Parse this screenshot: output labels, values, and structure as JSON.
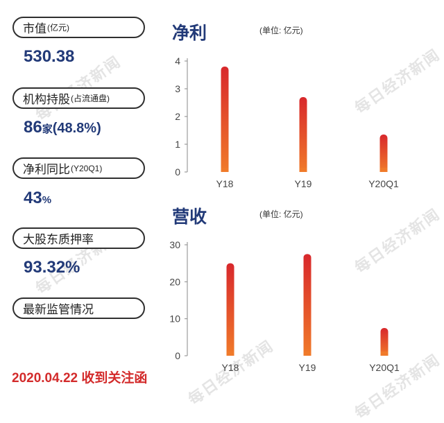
{
  "left_panel": {
    "items": [
      {
        "label": "市值",
        "sub": "(亿元)",
        "value": "530.38",
        "unit": ""
      },
      {
        "label": "机构持股",
        "sub": "(占流通盘)",
        "value": "86",
        "unit": "家",
        "extra": "(48.8%)"
      },
      {
        "label": "净利同比",
        "sub": "(Y20Q1)",
        "value": "43",
        "unit": "%"
      },
      {
        "label": "大股东质押率",
        "sub": "",
        "value": "93.32%",
        "unit": ""
      },
      {
        "label": "最新监管情况",
        "sub": ""
      }
    ],
    "footer": "2020.04.22 收到关注函"
  },
  "watermark": "每日经济新闻",
  "chart_data": [
    {
      "type": "bar",
      "title": "净利",
      "unit_label": "(单位: 亿元)",
      "categories": [
        "Y18",
        "Y19",
        "Y20Q1"
      ],
      "values": [
        3.8,
        2.7,
        1.35
      ],
      "ylim": [
        0,
        4
      ],
      "yticks": [
        0,
        1,
        2,
        3,
        4
      ],
      "grid": false,
      "colors": {
        "top": "#d8282c",
        "bottom": "#f07a2a"
      }
    },
    {
      "type": "bar",
      "title": "营收",
      "unit_label": "(单位: 亿元)",
      "categories": [
        "Y18",
        "Y19",
        "Y20Q1"
      ],
      "values": [
        25,
        27.5,
        7.5
      ],
      "ylim": [
        0,
        30
      ],
      "yticks": [
        0,
        10,
        20,
        30
      ],
      "grid": false,
      "colors": {
        "top": "#d8282c",
        "bottom": "#f07a2a"
      }
    }
  ]
}
